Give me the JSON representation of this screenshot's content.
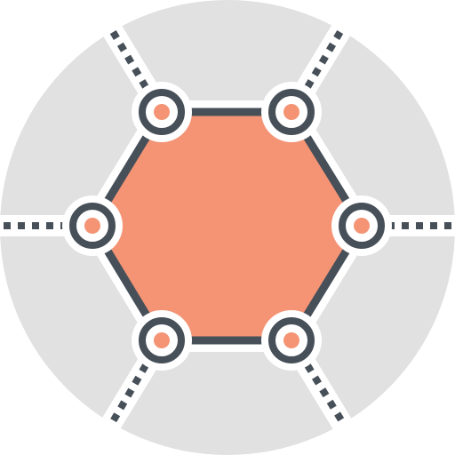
{
  "icon": {
    "name": "hexagon-network-icon",
    "colors": {
      "background_circle": "#e1e1e1",
      "divider": "#ffffff",
      "stroke": "#475059",
      "fill_accent": "#f49475",
      "node_fill": "#ffffff",
      "node_halo": "#ffffff"
    },
    "node_count": 6,
    "connector_count": 6
  }
}
